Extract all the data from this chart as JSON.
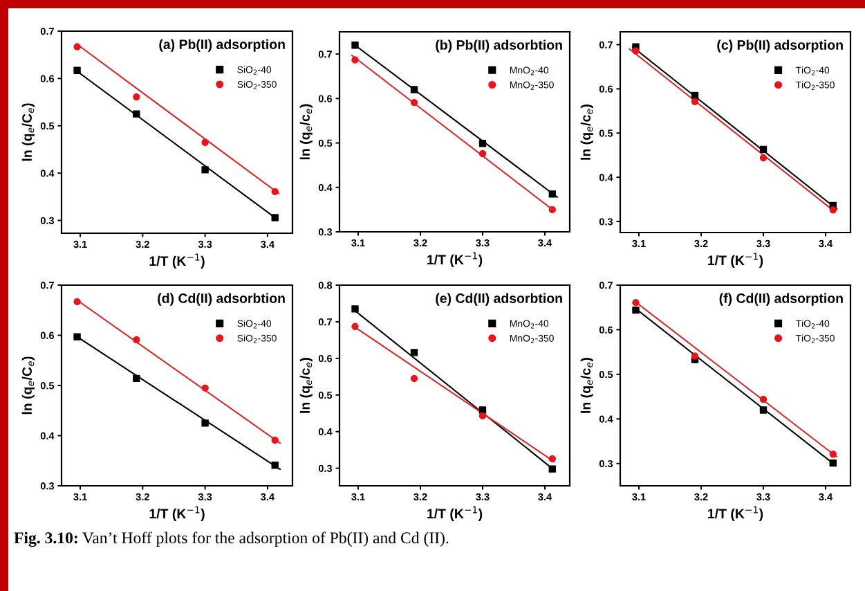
{
  "chart_data": [
    {
      "type": "scatter",
      "title": "(a) Pb(II) adsorption",
      "xlabel": "1/T (K$^{−1}$)",
      "ylabel": "ln (q$_{e}$/C$_{e}$)",
      "xlim": [
        3.07,
        3.44
      ],
      "xticks": [
        3.1,
        3.2,
        3.3,
        3.4
      ],
      "ylim": [
        0.273,
        0.7
      ],
      "yticks": [
        0.3,
        0.4,
        0.5,
        0.6,
        0.7
      ],
      "grid": false,
      "legend": "top right",
      "annotations": [
        "Fig. 3.10:",
        "Van’t Hoff plots for the adsorption of Pb(II) and Cd (II)."
      ],
      "series": [
        {
          "name": "SiO$_{2}$-40",
          "marker": "square",
          "color": "#000000",
          "x": [
            3.095,
            3.19,
            3.3,
            3.412
          ],
          "values": [
            0.617,
            0.525,
            0.407,
            0.306
          ]
        },
        {
          "name": "SiO$_{2}$-350",
          "marker": "circle",
          "color": "#e8151b",
          "x": [
            3.095,
            3.19,
            3.3,
            3.412
          ],
          "values": [
            0.667,
            0.561,
            0.465,
            0.361
          ]
        },
        {
          "type": "line",
          "color": "#000000",
          "x": [
            3.095,
            3.415
          ],
          "values": [
            0.615,
            0.303
          ]
        },
        {
          "type": "line",
          "color": "#d42a2a",
          "x": [
            3.095,
            3.418
          ],
          "values": [
            0.672,
            0.357
          ]
        }
      ]
    },
    {
      "type": "scatter",
      "title": "(b) Pb(II) adsorbtion",
      "xlabel": "1/T (K$^{−1}$)",
      "ylabel": "ln (q$_{e}$/c$_{e}$)",
      "xlim": [
        3.07,
        3.44
      ],
      "xticks": [
        3.1,
        3.2,
        3.3,
        3.4
      ],
      "ylim": [
        0.3,
        0.75
      ],
      "yticks": [
        0.3,
        0.4,
        0.5,
        0.6,
        0.7
      ],
      "grid": false,
      "legend": "top right",
      "series": [
        {
          "name": "MnO$_{2}$-40",
          "marker": "square",
          "color": "#000000",
          "x": [
            3.095,
            3.19,
            3.3,
            3.412
          ],
          "values": [
            0.72,
            0.62,
            0.499,
            0.385
          ]
        },
        {
          "name": "MnO$_{2}$-350",
          "marker": "circle",
          "color": "#e8151b",
          "x": [
            3.095,
            3.19,
            3.3,
            3.412
          ],
          "values": [
            0.687,
            0.591,
            0.476,
            0.35
          ]
        },
        {
          "type": "line",
          "color": "#000000",
          "x": [
            3.095,
            3.42
          ],
          "values": [
            0.72,
            0.378
          ]
        },
        {
          "type": "line",
          "color": "#d42a2a",
          "x": [
            3.09,
            3.415
          ],
          "values": [
            0.697,
            0.347
          ]
        }
      ]
    },
    {
      "type": "scatter",
      "title": "(c) Pb(II) adsorption",
      "xlabel": "1/T (K$^{−1}$)",
      "ylabel": "ln (q$_{e}$/c$_{e}$)",
      "xlim": [
        3.07,
        3.44
      ],
      "xticks": [
        3.1,
        3.2,
        3.3,
        3.4
      ],
      "ylim": [
        0.275,
        0.729
      ],
      "yticks": [
        0.3,
        0.4,
        0.5,
        0.6,
        0.7
      ],
      "grid": false,
      "legend": "top right",
      "series": [
        {
          "name": "TiO$_{2}$-40",
          "marker": "square",
          "color": "#000000",
          "x": [
            3.095,
            3.19,
            3.3,
            3.412
          ],
          "values": [
            0.695,
            0.585,
            0.463,
            0.336
          ]
        },
        {
          "name": "TiO$_{2}$-350",
          "marker": "circle",
          "color": "#e8151b",
          "x": [
            3.095,
            3.19,
            3.3,
            3.412
          ],
          "values": [
            0.686,
            0.571,
            0.444,
            0.326
          ]
        },
        {
          "type": "line",
          "color": "#000000",
          "x": [
            3.09,
            3.418
          ],
          "values": [
            0.695,
            0.328
          ]
        },
        {
          "type": "line",
          "color": "#d42a2a",
          "x": [
            3.085,
            3.415
          ],
          "values": [
            0.69,
            0.322
          ]
        }
      ]
    },
    {
      "type": "scatter",
      "title": "(d) Cd(II) adsorbtion",
      "xlabel": "1/T (K$^{−1}$)",
      "ylabel": "ln (q$_{e}$/C$_{e}$)",
      "xlim": [
        3.07,
        3.44
      ],
      "xticks": [
        3.1,
        3.2,
        3.3,
        3.4
      ],
      "ylim": [
        0.3,
        0.7
      ],
      "yticks": [
        0.3,
        0.4,
        0.5,
        0.6,
        0.7
      ],
      "grid": false,
      "legend": "top right",
      "series": [
        {
          "name": "SiO$_{2}$-40",
          "marker": "square",
          "color": "#000000",
          "x": [
            3.095,
            3.19,
            3.3,
            3.412
          ],
          "values": [
            0.597,
            0.514,
            0.425,
            0.341
          ]
        },
        {
          "name": "SiO$_{2}$-350",
          "marker": "circle",
          "color": "#e8151b",
          "x": [
            3.095,
            3.19,
            3.3,
            3.412
          ],
          "values": [
            0.667,
            0.591,
            0.495,
            0.391
          ]
        },
        {
          "type": "line",
          "color": "#000000",
          "x": [
            3.095,
            3.42
          ],
          "values": [
            0.597,
            0.333
          ]
        },
        {
          "type": "line",
          "color": "#d42a2a",
          "x": [
            3.095,
            3.42
          ],
          "values": [
            0.67,
            0.385
          ]
        }
      ]
    },
    {
      "type": "scatter",
      "title": "(e) Cd(II) adsorbtion",
      "xlabel": "1/T (K$^{−1}$)",
      "ylabel": "ln (q$_{e}$/c$_{e}$)",
      "xlim": [
        3.07,
        3.44
      ],
      "xticks": [
        3.1,
        3.2,
        3.3,
        3.4
      ],
      "ylim": [
        0.252,
        0.8
      ],
      "yticks": [
        0.3,
        0.4,
        0.5,
        0.6,
        0.7,
        0.8
      ],
      "grid": false,
      "legend": "top right",
      "series": [
        {
          "name": "MnO$_{2}$-40",
          "marker": "square",
          "color": "#000000",
          "x": [
            3.095,
            3.19,
            3.3,
            3.412
          ],
          "values": [
            0.735,
            0.616,
            0.459,
            0.298
          ]
        },
        {
          "name": "MnO$_{2}$-350",
          "marker": "circle",
          "color": "#e8151b",
          "x": [
            3.095,
            3.19,
            3.3,
            3.412
          ],
          "values": [
            0.687,
            0.545,
            0.443,
            0.326
          ]
        },
        {
          "type": "line",
          "color": "#000000",
          "x": [
            3.095,
            3.415
          ],
          "values": [
            0.73,
            0.295
          ]
        },
        {
          "type": "line",
          "color": "#d42a2a",
          "x": [
            3.095,
            3.415
          ],
          "values": [
            0.685,
            0.318
          ]
        }
      ]
    },
    {
      "type": "scatter",
      "title": "(f) Cd(II) adsorption",
      "xlabel": "1/T (K$^{−1}$)",
      "ylabel": "ln (q$_{e}$/c$_{e}$)",
      "xlim": [
        3.07,
        3.44
      ],
      "xticks": [
        3.1,
        3.2,
        3.3,
        3.4
      ],
      "ylim": [
        0.25,
        0.7
      ],
      "yticks": [
        0.3,
        0.4,
        0.5,
        0.6,
        0.7
      ],
      "grid": false,
      "legend": "top right",
      "series": [
        {
          "name": "TiO$_{2}$-40",
          "marker": "square",
          "color": "#000000",
          "x": [
            3.095,
            3.19,
            3.3,
            3.412
          ],
          "values": [
            0.644,
            0.533,
            0.42,
            0.301
          ]
        },
        {
          "name": "TiO$_{2}$-350",
          "marker": "circle",
          "color": "#e8151b",
          "x": [
            3.095,
            3.19,
            3.3,
            3.412
          ],
          "values": [
            0.661,
            0.541,
            0.444,
            0.321
          ]
        },
        {
          "type": "line",
          "color": "#000000",
          "x": [
            3.095,
            3.415
          ],
          "values": [
            0.647,
            0.297
          ]
        },
        {
          "type": "line",
          "color": "#d42a2a",
          "x": [
            3.095,
            3.418
          ],
          "values": [
            0.662,
            0.315
          ]
        }
      ]
    }
  ]
}
